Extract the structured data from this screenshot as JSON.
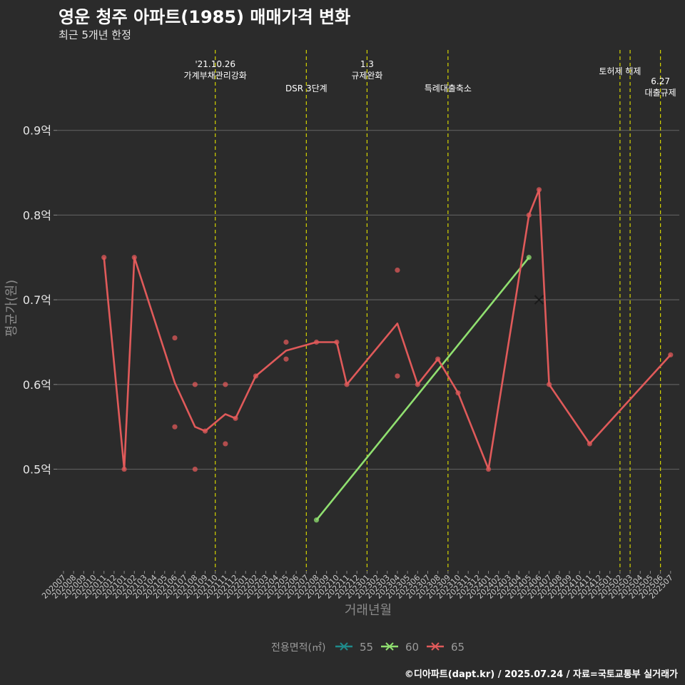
{
  "chart_data": {
    "type": "line",
    "title": "영운 청주 아파트(1985) 매매가격 변화",
    "subtitle": "최근 5개년 한정",
    "xlabel": "거래년월",
    "ylabel": "평균가(원)",
    "ylim": [
      0.38,
      1.0
    ],
    "y_ticks": [
      {
        "value": 0.5,
        "label": "0.5억"
      },
      {
        "value": 0.6,
        "label": "0.6억"
      },
      {
        "value": 0.7,
        "label": "0.7억"
      },
      {
        "value": 0.8,
        "label": "0.8억"
      },
      {
        "value": 0.9,
        "label": "0.9억"
      }
    ],
    "grid": true,
    "x_categories": [
      "202007",
      "202008",
      "202009",
      "202010",
      "202011",
      "202012",
      "202101",
      "202102",
      "202103",
      "202104",
      "202105",
      "202106",
      "202107",
      "202108",
      "202109",
      "202110",
      "202111",
      "202112",
      "202201",
      "202202",
      "202203",
      "202204",
      "202205",
      "202206",
      "202207",
      "202208",
      "202209",
      "202210",
      "202211",
      "202212",
      "202301",
      "202302",
      "202303",
      "202304",
      "202305",
      "202306",
      "202307",
      "202308",
      "202309",
      "202310",
      "202311",
      "202312",
      "202401",
      "202402",
      "202403",
      "202404",
      "202405",
      "202406",
      "202407",
      "202408",
      "202409",
      "202410",
      "202411",
      "202412",
      "202501",
      "202502",
      "202503",
      "202504",
      "202505",
      "202506",
      "202507"
    ],
    "legend": {
      "title": "전용면적(㎡)",
      "position": "bottom"
    },
    "series": [
      {
        "name": "55",
        "color": "#1f8a8a",
        "line": [],
        "points": []
      },
      {
        "name": "60",
        "color": "#90e070",
        "line": [
          {
            "x": "202208",
            "y": 0.44
          },
          {
            "x": "202405",
            "y": 0.75
          }
        ],
        "points": [
          {
            "x": "202208",
            "y": 0.44
          },
          {
            "x": "202405",
            "y": 0.75
          }
        ]
      },
      {
        "name": "65",
        "color": "#e05a5a",
        "line": [
          {
            "x": "202011",
            "y": 0.75
          },
          {
            "x": "202101",
            "y": 0.5
          },
          {
            "x": "202102",
            "y": 0.75
          },
          {
            "x": "202106",
            "y": 0.602
          },
          {
            "x": "202108",
            "y": 0.55
          },
          {
            "x": "202109",
            "y": 0.545
          },
          {
            "x": "202111",
            "y": 0.565
          },
          {
            "x": "202112",
            "y": 0.56
          },
          {
            "x": "202202",
            "y": 0.61
          },
          {
            "x": "202205",
            "y": 0.64
          },
          {
            "x": "202208",
            "y": 0.65
          },
          {
            "x": "202210",
            "y": 0.65
          },
          {
            "x": "202211",
            "y": 0.6
          },
          {
            "x": "202304",
            "y": 0.672
          },
          {
            "x": "202306",
            "y": 0.6
          },
          {
            "x": "202308",
            "y": 0.63
          },
          {
            "x": "202310",
            "y": 0.59
          },
          {
            "x": "202401",
            "y": 0.5
          },
          {
            "x": "202405",
            "y": 0.8
          },
          {
            "x": "202406",
            "y": 0.83
          },
          {
            "x": "202407",
            "y": 0.6
          },
          {
            "x": "202411",
            "y": 0.53
          },
          {
            "x": "202507",
            "y": 0.635
          }
        ],
        "points": [
          {
            "x": "202011",
            "y": 0.75
          },
          {
            "x": "202101",
            "y": 0.5
          },
          {
            "x": "202102",
            "y": 0.75
          },
          {
            "x": "202106",
            "y": 0.655
          },
          {
            "x": "202106",
            "y": 0.55
          },
          {
            "x": "202108",
            "y": 0.6
          },
          {
            "x": "202108",
            "y": 0.5
          },
          {
            "x": "202109",
            "y": 0.545
          },
          {
            "x": "202111",
            "y": 0.6
          },
          {
            "x": "202111",
            "y": 0.53
          },
          {
            "x": "202112",
            "y": 0.56
          },
          {
            "x": "202202",
            "y": 0.61
          },
          {
            "x": "202205",
            "y": 0.65
          },
          {
            "x": "202205",
            "y": 0.63
          },
          {
            "x": "202208",
            "y": 0.65
          },
          {
            "x": "202210",
            "y": 0.65
          },
          {
            "x": "202211",
            "y": 0.6
          },
          {
            "x": "202304",
            "y": 0.735
          },
          {
            "x": "202304",
            "y": 0.61
          },
          {
            "x": "202306",
            "y": 0.6
          },
          {
            "x": "202308",
            "y": 0.63
          },
          {
            "x": "202310",
            "y": 0.59
          },
          {
            "x": "202401",
            "y": 0.5
          },
          {
            "x": "202405",
            "y": 0.8
          },
          {
            "x": "202406",
            "y": 0.83
          },
          {
            "x": "202407",
            "y": 0.6
          },
          {
            "x": "202411",
            "y": 0.53
          },
          {
            "x": "202507",
            "y": 0.635
          }
        ],
        "x_markers": [
          {
            "x": "202406",
            "y": 0.7
          }
        ]
      }
    ],
    "event_lines": [
      {
        "x": "202110",
        "lines": [
          "'21.10.26",
          "가계부채관리강화"
        ],
        "row": 1
      },
      {
        "x": "202207",
        "lines": [
          "DSR 3단계"
        ],
        "row": 2
      },
      {
        "x": "202301",
        "lines": [
          "1.3",
          "규제완화"
        ],
        "row": 1
      },
      {
        "x": "202309",
        "lines": [
          "특례대출축소"
        ],
        "row": 2
      },
      {
        "x": "202502",
        "lines": [
          "토허제 해제"
        ],
        "row": 1
      },
      {
        "x": "202503",
        "lines": [],
        "row": 1
      },
      {
        "x": "202506",
        "lines": [
          "6.27",
          "대출규제"
        ],
        "row": 2
      }
    ],
    "colors": {
      "background": "#2b2b2b",
      "grid": "#5e5e5e",
      "event_line": "#d4d400",
      "axis_text": "#c0c0c0"
    }
  },
  "caption": "©디아파트(dapt.kr) / 2025.07.24 / 자료=국토교통부 실거래가"
}
